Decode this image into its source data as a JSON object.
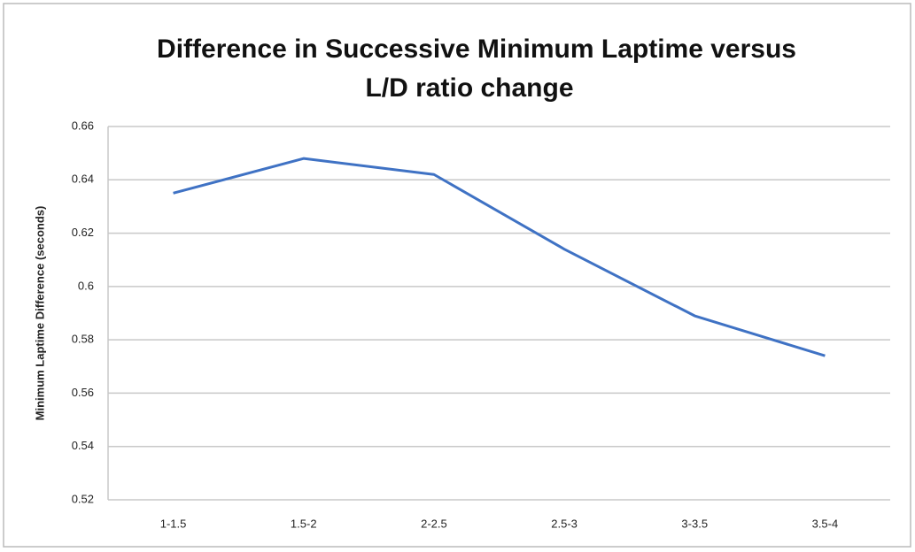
{
  "chart_data": {
    "type": "line",
    "title": [
      "Difference in Successive Minimum Laptime versus",
      "L/D ratio change"
    ],
    "y_label": "Minimum Laptime Difference (seconds)",
    "categories": [
      "1-1.5",
      "1.5-2",
      "2-2.5",
      "2.5-3",
      "3-3.5",
      "3.5-4"
    ],
    "values": [
      0.635,
      0.648,
      0.642,
      0.614,
      0.589,
      0.574
    ],
    "color": "#3f72c4",
    "ylim": [
      0.52,
      0.66
    ],
    "yticks": [
      0.52,
      0.54,
      0.56,
      0.58,
      0.6,
      0.62,
      0.64,
      0.66
    ],
    "grid": true
  }
}
